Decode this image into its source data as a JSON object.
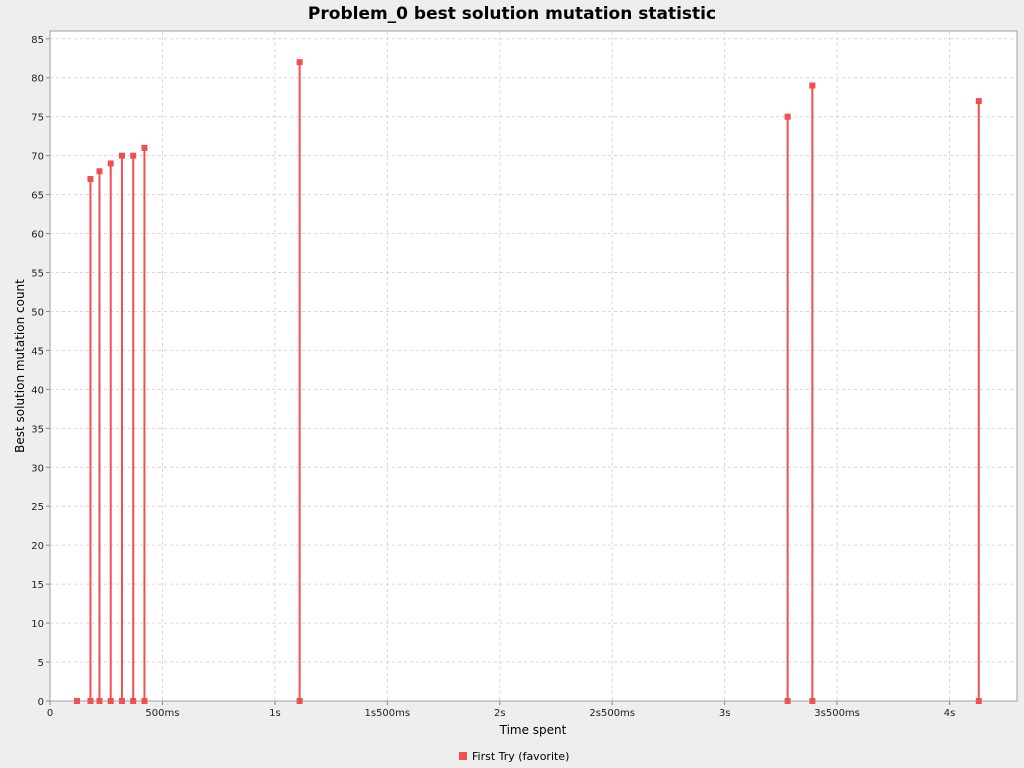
{
  "chart_data": {
    "type": "scatter",
    "style": "impulse",
    "title": "Problem_0 best solution mutation statistic",
    "xlabel": "Time spent",
    "ylabel": "Best solution mutation count",
    "xlim": [
      0,
      4.3
    ],
    "ylim": [
      0,
      86
    ],
    "x_unit": "s",
    "x_ticks": [
      {
        "value": 0,
        "label": "0"
      },
      {
        "value": 0.5,
        "label": "500ms"
      },
      {
        "value": 1,
        "label": "1s"
      },
      {
        "value": 1.5,
        "label": "1s500ms"
      },
      {
        "value": 2,
        "label": "2s"
      },
      {
        "value": 2.5,
        "label": "2s500ms"
      },
      {
        "value": 3,
        "label": "3s"
      },
      {
        "value": 3.5,
        "label": "3s500ms"
      },
      {
        "value": 4,
        "label": "4s"
      }
    ],
    "y_ticks": [
      0,
      5,
      10,
      15,
      20,
      25,
      30,
      35,
      40,
      45,
      50,
      55,
      60,
      65,
      70,
      75,
      80,
      85
    ],
    "grid": true,
    "legend_position": "bottom",
    "series": [
      {
        "name": "First Try (favorite)",
        "color": "#f05050",
        "points": [
          {
            "x": 0.12,
            "y": 0
          },
          {
            "x": 0.18,
            "y": 67
          },
          {
            "x": 0.22,
            "y": 68
          },
          {
            "x": 0.27,
            "y": 69
          },
          {
            "x": 0.32,
            "y": 70
          },
          {
            "x": 0.37,
            "y": 70
          },
          {
            "x": 0.42,
            "y": 71
          },
          {
            "x": 1.11,
            "y": 82
          },
          {
            "x": 3.28,
            "y": 75
          },
          {
            "x": 3.39,
            "y": 79
          },
          {
            "x": 4.13,
            "y": 77
          }
        ]
      }
    ]
  }
}
